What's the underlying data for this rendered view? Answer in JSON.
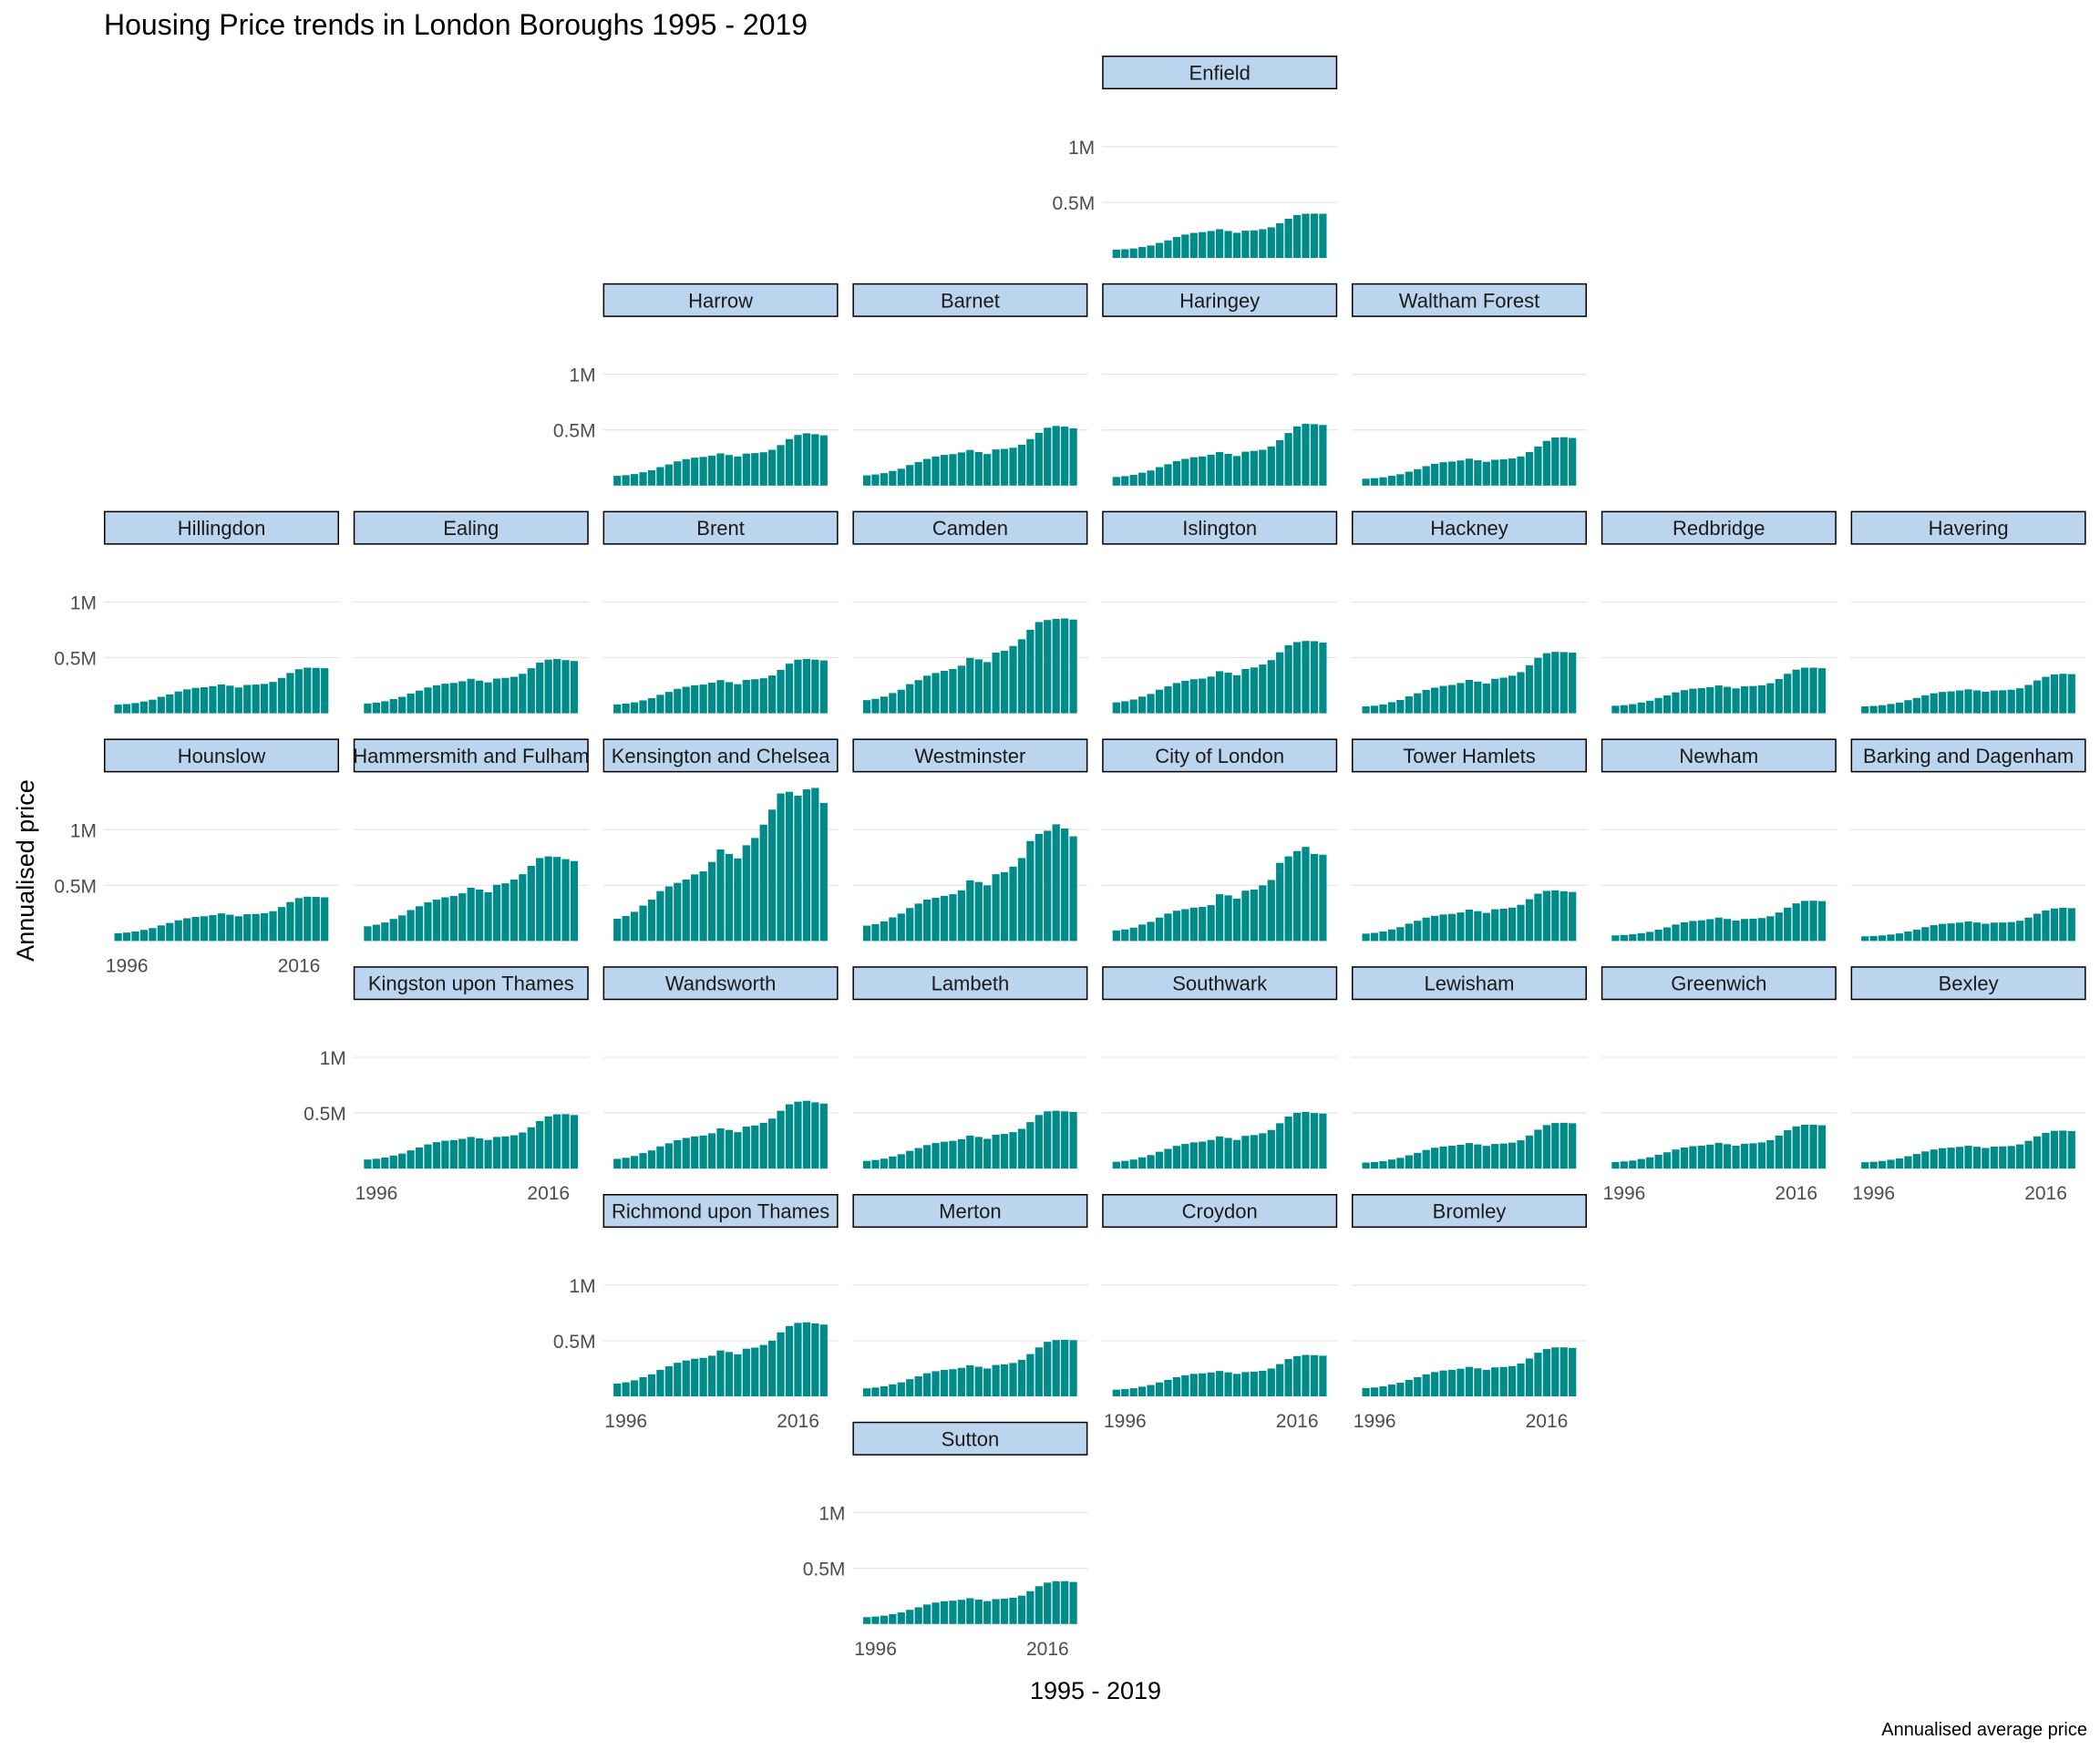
{
  "chart_data": {
    "type": "bar",
    "title": "Housing Price trends in London Boroughs 1995 - 2019",
    "xlabel": "1995 - 2019",
    "ylabel": "Annualised price",
    "caption": "Annualised average price",
    "x": [
      1995,
      1996,
      1997,
      1998,
      1999,
      2000,
      2001,
      2002,
      2003,
      2004,
      2005,
      2006,
      2007,
      2008,
      2009,
      2010,
      2011,
      2012,
      2013,
      2014,
      2015,
      2016,
      2017,
      2018,
      2019
    ],
    "x_ticks": [
      "1996",
      "2016"
    ],
    "y_ticks": [
      "0.5M",
      "1M"
    ],
    "ylim": [
      0,
      1400000
    ],
    "facet_layout": "geographic grid, 8 columns x 8 rows",
    "grid": true,
    "colors": {
      "bar": "#008B8B",
      "strip_fill": "#BCD5EE",
      "strip_border": "#000000",
      "gridline": "#E5E5E5",
      "axis_text": "#4D4D4D"
    },
    "series": [
      {
        "name": "Enfield",
        "values": [
          75000,
          78000,
          85000,
          98000,
          112000,
          135000,
          158000,
          188000,
          210000,
          225000,
          232000,
          242000,
          258000,
          242000,
          226000,
          245000,
          248000,
          258000,
          275000,
          312000,
          352000,
          385000,
          397000,
          398000,
          397000
        ]
      },
      {
        "name": "Harrow",
        "values": [
          88000,
          94000,
          104000,
          120000,
          138000,
          166000,
          190000,
          218000,
          238000,
          251000,
          258000,
          270000,
          289000,
          275000,
          262000,
          288000,
          292000,
          300000,
          322000,
          364000,
          418000,
          455000,
          470000,
          462000,
          452000
        ]
      },
      {
        "name": "Barnet",
        "values": [
          92000,
          100000,
          112000,
          132000,
          152000,
          185000,
          212000,
          240000,
          262000,
          276000,
          283000,
          298000,
          320000,
          302000,
          284000,
          325000,
          330000,
          340000,
          368000,
          418000,
          475000,
          520000,
          536000,
          530000,
          515000
        ]
      },
      {
        "name": "Haringey",
        "values": [
          78000,
          85000,
          97000,
          116000,
          136000,
          166000,
          192000,
          220000,
          240000,
          255000,
          262000,
          278000,
          302000,
          285000,
          266000,
          305000,
          312000,
          322000,
          352000,
          408000,
          472000,
          532000,
          555000,
          552000,
          545000
        ]
      },
      {
        "name": "Waltham Forest",
        "values": [
          62000,
          67000,
          75000,
          88000,
          102000,
          125000,
          148000,
          175000,
          196000,
          210000,
          216000,
          226000,
          242000,
          228000,
          214000,
          232000,
          236000,
          244000,
          262000,
          302000,
          352000,
          402000,
          432000,
          435000,
          428000
        ]
      },
      {
        "name": "Hillingdon",
        "values": [
          78000,
          83000,
          92000,
          106000,
          122000,
          148000,
          170000,
          196000,
          215000,
          228000,
          234000,
          244000,
          259000,
          248000,
          232000,
          255000,
          258000,
          264000,
          282000,
          318000,
          362000,
          396000,
          410000,
          408000,
          405000
        ]
      },
      {
        "name": "Ealing",
        "values": [
          88000,
          96000,
          108000,
          128000,
          148000,
          178000,
          204000,
          232000,
          252000,
          266000,
          273000,
          288000,
          310000,
          294000,
          278000,
          312000,
          318000,
          328000,
          355000,
          405000,
          455000,
          482000,
          488000,
          478000,
          470000
        ]
      },
      {
        "name": "Brent",
        "values": [
          80000,
          87000,
          98000,
          116000,
          136000,
          166000,
          192000,
          220000,
          238000,
          252000,
          258000,
          275000,
          298000,
          280000,
          262000,
          300000,
          306000,
          315000,
          340000,
          390000,
          446000,
          482000,
          488000,
          482000,
          475000
        ]
      },
      {
        "name": "Camden",
        "values": [
          118000,
          130000,
          150000,
          182000,
          212000,
          262000,
          298000,
          338000,
          362000,
          382000,
          398000,
          428000,
          498000,
          485000,
          460000,
          545000,
          562000,
          605000,
          665000,
          750000,
          820000,
          838000,
          848000,
          852000,
          842000
        ]
      },
      {
        "name": "Islington",
        "values": [
          98000,
          108000,
          124000,
          150000,
          174000,
          212000,
          242000,
          272000,
          292000,
          306000,
          312000,
          330000,
          378000,
          365000,
          342000,
          398000,
          412000,
          438000,
          478000,
          548000,
          612000,
          640000,
          650000,
          648000,
          635000
        ]
      },
      {
        "name": "Hackney",
        "values": [
          62000,
          68000,
          80000,
          100000,
          120000,
          152000,
          180000,
          210000,
          230000,
          246000,
          255000,
          272000,
          300000,
          285000,
          268000,
          310000,
          320000,
          338000,
          370000,
          432000,
          498000,
          540000,
          552000,
          550000,
          545000
        ]
      },
      {
        "name": "Redbridge",
        "values": [
          68000,
          73000,
          82000,
          97000,
          113000,
          138000,
          161000,
          188000,
          208000,
          221000,
          226000,
          235000,
          250000,
          238000,
          224000,
          242000,
          245000,
          252000,
          270000,
          308000,
          355000,
          392000,
          410000,
          410000,
          405000
        ]
      },
      {
        "name": "Havering",
        "values": [
          62000,
          66000,
          73000,
          84000,
          97000,
          118000,
          138000,
          162000,
          180000,
          192000,
          197000,
          205000,
          215000,
          206000,
          194000,
          205000,
          207000,
          212000,
          225000,
          255000,
          295000,
          328000,
          350000,
          355000,
          352000
        ]
      },
      {
        "name": "Hounslow",
        "values": [
          70000,
          76000,
          85000,
          100000,
          116000,
          140000,
          162000,
          186000,
          204000,
          216000,
          222000,
          232000,
          248000,
          236000,
          222000,
          240000,
          243000,
          250000,
          268000,
          305000,
          350000,
          385000,
          398000,
          396000,
          392000
        ]
      },
      {
        "name": "Hammersmith and Fulham",
        "values": [
          132000,
          146000,
          166000,
          198000,
          230000,
          278000,
          312000,
          348000,
          372000,
          392000,
          404000,
          428000,
          478000,
          462000,
          438000,
          505000,
          518000,
          552000,
          600000,
          675000,
          745000,
          760000,
          755000,
          735000,
          718000
        ]
      },
      {
        "name": "Kensington and Chelsea",
        "values": [
          200000,
          225000,
          262000,
          318000,
          372000,
          448000,
          490000,
          522000,
          552000,
          598000,
          625000,
          710000,
          822000,
          782000,
          742000,
          860000,
          925000,
          1045000,
          1180000,
          1325000,
          1340000,
          1305000,
          1362000,
          1375000,
          1240000
        ]
      },
      {
        "name": "Westminster",
        "values": [
          138000,
          152000,
          176000,
          212000,
          246000,
          296000,
          336000,
          372000,
          388000,
          405000,
          420000,
          455000,
          545000,
          530000,
          500000,
          600000,
          618000,
          668000,
          745000,
          898000,
          962000,
          990000,
          1048000,
          1010000,
          940000
        ]
      },
      {
        "name": "City of London",
        "values": [
          95000,
          104000,
          120000,
          148000,
          172000,
          210000,
          246000,
          272000,
          286000,
          300000,
          306000,
          322000,
          420000,
          410000,
          380000,
          452000,
          462000,
          500000,
          548000,
          702000,
          760000,
          808000,
          845000,
          782000,
          775000
        ]
      },
      {
        "name": "Tower Hamlets",
        "values": [
          66000,
          73000,
          85000,
          104000,
          124000,
          156000,
          182000,
          210000,
          226000,
          238000,
          243000,
          256000,
          282000,
          268000,
          252000,
          285000,
          290000,
          300000,
          325000,
          375000,
          425000,
          450000,
          455000,
          447000,
          440000
        ]
      },
      {
        "name": "Newham",
        "values": [
          50000,
          54000,
          60000,
          70000,
          82000,
          102000,
          122000,
          148000,
          168000,
          180000,
          186000,
          196000,
          210000,
          198000,
          184000,
          198000,
          200000,
          206000,
          222000,
          256000,
          300000,
          338000,
          360000,
          362000,
          358000
        ]
      },
      {
        "name": "Barking and Dagenham",
        "values": [
          42000,
          45000,
          50000,
          58000,
          68000,
          85000,
          102000,
          124000,
          142000,
          154000,
          158000,
          165000,
          176000,
          166000,
          155000,
          165000,
          166000,
          170000,
          182000,
          210000,
          245000,
          275000,
          292000,
          298000,
          295000
        ]
      },
      {
        "name": "Kingston upon Thames",
        "values": [
          82000,
          89000,
          100000,
          118000,
          136000,
          164000,
          190000,
          218000,
          238000,
          251000,
          257000,
          268000,
          285000,
          272000,
          258000,
          285000,
          290000,
          300000,
          325000,
          372000,
          428000,
          470000,
          488000,
          490000,
          482000
        ]
      },
      {
        "name": "Wandsworth",
        "values": [
          88000,
          98000,
          114000,
          140000,
          164000,
          200000,
          228000,
          256000,
          276000,
          290000,
          298000,
          318000,
          362000,
          348000,
          328000,
          378000,
          388000,
          412000,
          450000,
          520000,
          578000,
          602000,
          610000,
          596000,
          585000
        ]
      },
      {
        "name": "Lambeth",
        "values": [
          70000,
          78000,
          90000,
          110000,
          130000,
          160000,
          185000,
          212000,
          230000,
          242000,
          250000,
          265000,
          298000,
          285000,
          268000,
          305000,
          312000,
          328000,
          358000,
          418000,
          482000,
          515000,
          520000,
          515000,
          510000
        ]
      },
      {
        "name": "Southwark",
        "values": [
          62000,
          70000,
          82000,
          102000,
          122000,
          152000,
          178000,
          205000,
          222000,
          236000,
          243000,
          258000,
          290000,
          276000,
          258000,
          295000,
          302000,
          318000,
          348000,
          408000,
          468000,
          502000,
          510000,
          500000,
          495000
        ]
      },
      {
        "name": "Lewisham",
        "values": [
          55000,
          60000,
          68000,
          82000,
          97000,
          120000,
          142000,
          168000,
          188000,
          200000,
          206000,
          215000,
          230000,
          218000,
          205000,
          222000,
          226000,
          234000,
          255000,
          298000,
          350000,
          392000,
          410000,
          412000,
          408000
        ]
      },
      {
        "name": "Greenwich",
        "values": [
          60000,
          65000,
          73000,
          87000,
          102000,
          125000,
          147000,
          172000,
          190000,
          202000,
          207000,
          216000,
          232000,
          220000,
          206000,
          224000,
          228000,
          236000,
          256000,
          298000,
          346000,
          380000,
          395000,
          395000,
          390000
        ]
      },
      {
        "name": "Bexley",
        "values": [
          58000,
          62000,
          69000,
          80000,
          92000,
          112000,
          132000,
          155000,
          172000,
          184000,
          189000,
          196000,
          206000,
          197000,
          186000,
          198000,
          200000,
          204000,
          218000,
          250000,
          290000,
          322000,
          340000,
          342000,
          338000
        ]
      },
      {
        "name": "Richmond upon Thames",
        "values": [
          115000,
          126000,
          144000,
          172000,
          198000,
          238000,
          270000,
          302000,
          322000,
          338000,
          346000,
          365000,
          412000,
          398000,
          378000,
          428000,
          438000,
          462000,
          500000,
          575000,
          632000,
          660000,
          665000,
          655000,
          645000
        ]
      },
      {
        "name": "Merton",
        "values": [
          72000,
          79000,
          90000,
          108000,
          126000,
          154000,
          180000,
          208000,
          226000,
          238000,
          244000,
          256000,
          280000,
          266000,
          250000,
          282000,
          288000,
          300000,
          328000,
          380000,
          440000,
          490000,
          506000,
          508000,
          505000
        ]
      },
      {
        "name": "Croydon",
        "values": [
          60000,
          65000,
          73000,
          87000,
          102000,
          125000,
          148000,
          172000,
          190000,
          202000,
          207000,
          215000,
          228000,
          216000,
          202000,
          218000,
          222000,
          230000,
          250000,
          290000,
          335000,
          362000,
          372000,
          370000,
          365000
        ]
      },
      {
        "name": "Bromley",
        "values": [
          75000,
          80000,
          90000,
          106000,
          122000,
          148000,
          172000,
          198000,
          218000,
          232000,
          238000,
          248000,
          265000,
          252000,
          238000,
          260000,
          264000,
          272000,
          295000,
          340000,
          392000,
          425000,
          440000,
          440000,
          435000
        ]
      },
      {
        "name": "Sutton",
        "values": [
          62000,
          67000,
          75000,
          89000,
          104000,
          128000,
          150000,
          175000,
          193000,
          205000,
          210000,
          218000,
          232000,
          220000,
          206000,
          224000,
          228000,
          236000,
          255000,
          295000,
          340000,
          372000,
          385000,
          385000,
          378000
        ]
      }
    ]
  }
}
